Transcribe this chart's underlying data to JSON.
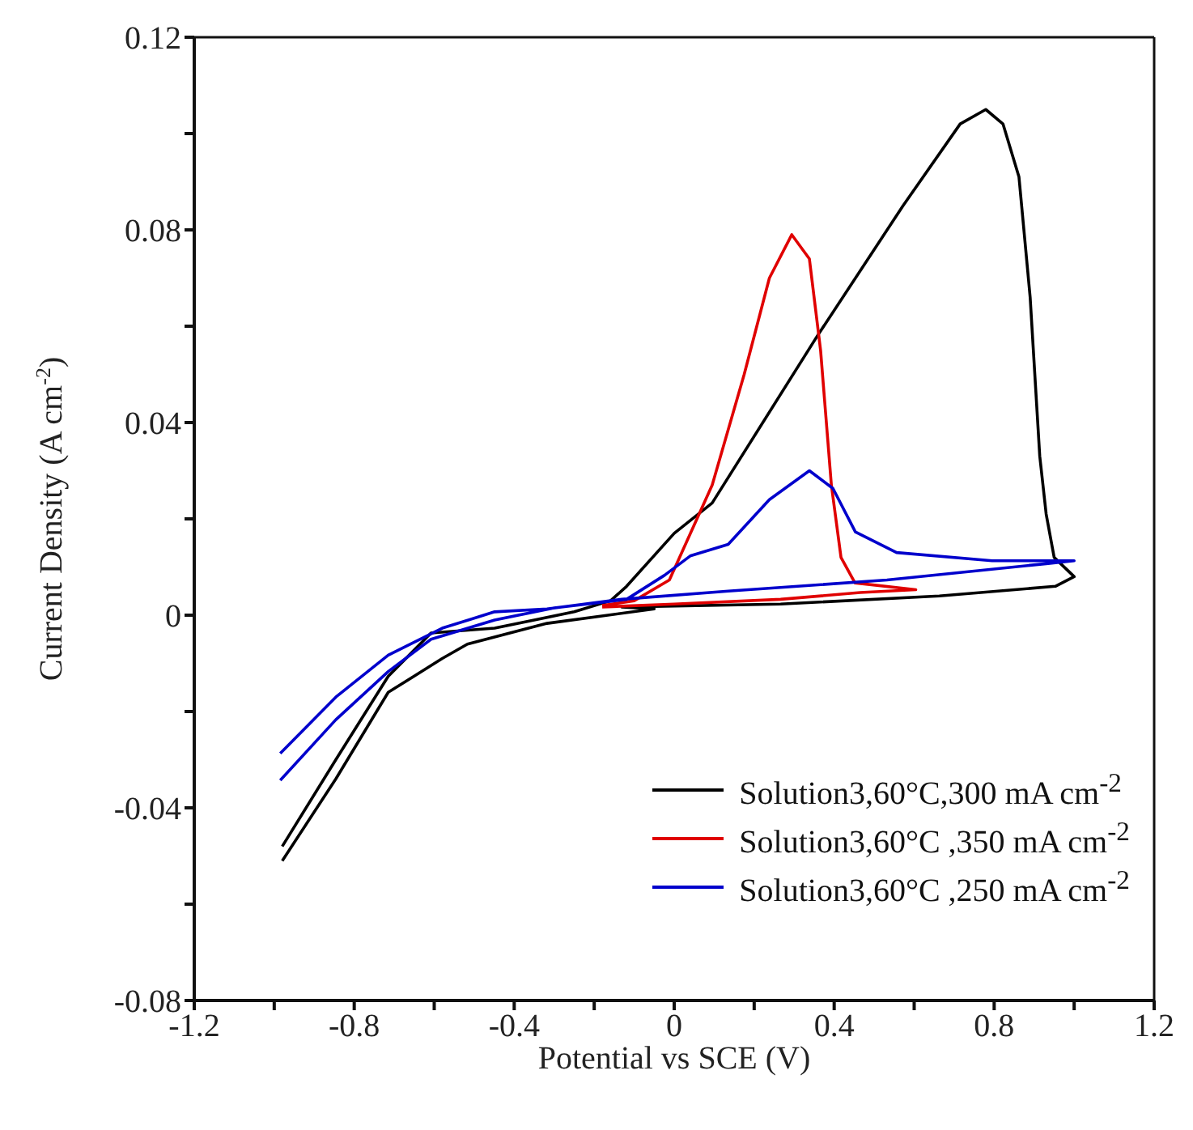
{
  "chart_data": {
    "type": "line",
    "xlabel": "Potential vs SCE (V)",
    "ylabel": "Current Density (A cm$^{-2}$)",
    "xlim": [
      -1.2,
      1.2
    ],
    "ylim": [
      -0.08,
      0.12
    ],
    "xticks": [
      -1.2,
      {
        "value": -1.0,
        "label": null
      },
      -0.8,
      {
        "value": -0.6,
        "label": null
      },
      -0.4,
      {
        "value": -0.2,
        "label": null
      },
      0,
      {
        "value": 0.2,
        "label": null
      },
      0.4,
      {
        "value": 0.6,
        "label": null
      },
      0.8,
      {
        "value": 1.0,
        "label": null
      },
      1.2
    ],
    "yticks": [
      -0.08,
      {
        "value": -0.06,
        "label": null
      },
      -0.04,
      {
        "value": -0.02,
        "label": null
      },
      0,
      {
        "value": 0.02,
        "label": null
      },
      0.04,
      {
        "value": 0.06,
        "label": null
      },
      0.08,
      {
        "value": 0.1,
        "label": null
      },
      0.12
    ],
    "grid": false,
    "legend": "bottom right",
    "marker": "none",
    "line_style": "solid",
    "series": [
      {
        "name": "Solution3,60°C,300 mA cm$^{-2}$",
        "color": "#000000",
        "x": [
          -0.98,
          -0.846,
          -0.715,
          -0.608,
          -0.449,
          -0.25,
          -0.159,
          -0.119,
          0,
          0.095,
          0.358,
          0.572,
          0.715,
          0.779,
          0.822,
          0.862,
          0.89,
          0.914,
          0.93,
          0.95,
          1.0,
          0.953,
          0.663,
          0.266,
          -0.131,
          -0.05,
          -0.318,
          -0.517,
          -0.58,
          -0.715,
          -0.846,
          -0.98
        ],
        "values": [
          -0.048,
          -0.03,
          -0.0127,
          -0.0037,
          -0.0027,
          0.0007,
          0.003,
          0.006,
          0.017,
          0.0233,
          0.058,
          0.085,
          0.102,
          0.105,
          0.102,
          0.091,
          0.066,
          0.033,
          0.021,
          0.012,
          0.008,
          0.006,
          0.004,
          0.0023,
          0.0017,
          0.0013,
          -0.0017,
          -0.006,
          -0.009,
          -0.016,
          -0.034,
          -0.051
        ]
      },
      {
        "name": "Solution3,60°C ,350 mA cm$^{-2}$",
        "color": "#e00000",
        "x": [
          -0.18,
          -0.1,
          -0.012,
          0.095,
          0.175,
          0.238,
          0.294,
          0.338,
          0.366,
          0.393,
          0.417,
          0.452,
          0.604,
          0.465,
          0.266,
          0,
          -0.18
        ],
        "values": [
          0.002,
          0.003,
          0.0073,
          0.027,
          0.05,
          0.07,
          0.079,
          0.074,
          0.055,
          0.027,
          0.012,
          0.0067,
          0.0053,
          0.0047,
          0.0033,
          0.0023,
          0.0017
        ]
      },
      {
        "name": "Solution3,60°C ,250 mA cm$^{-2}$",
        "color": "#0000cc",
        "x": [
          -0.985,
          -0.846,
          -0.715,
          -0.608,
          -0.449,
          -0.3,
          -0.119,
          -0.024,
          0.04,
          0.135,
          0.238,
          0.338,
          0.397,
          0.453,
          0.556,
          0.795,
          1.0,
          0.93,
          0.532,
          0.135,
          -0.131,
          -0.318,
          -0.449,
          -0.58,
          -0.715,
          -0.846,
          -0.985
        ],
        "values": [
          -0.0343,
          -0.0217,
          -0.0117,
          -0.005,
          -0.001,
          0.0015,
          0.0033,
          0.0083,
          0.0123,
          0.0147,
          0.024,
          0.03,
          0.0263,
          0.0173,
          0.013,
          0.0113,
          0.0113,
          0.0107,
          0.0073,
          0.005,
          0.0033,
          0.0013,
          0.0007,
          -0.0027,
          -0.0083,
          -0.017,
          -0.0287
        ]
      }
    ]
  }
}
